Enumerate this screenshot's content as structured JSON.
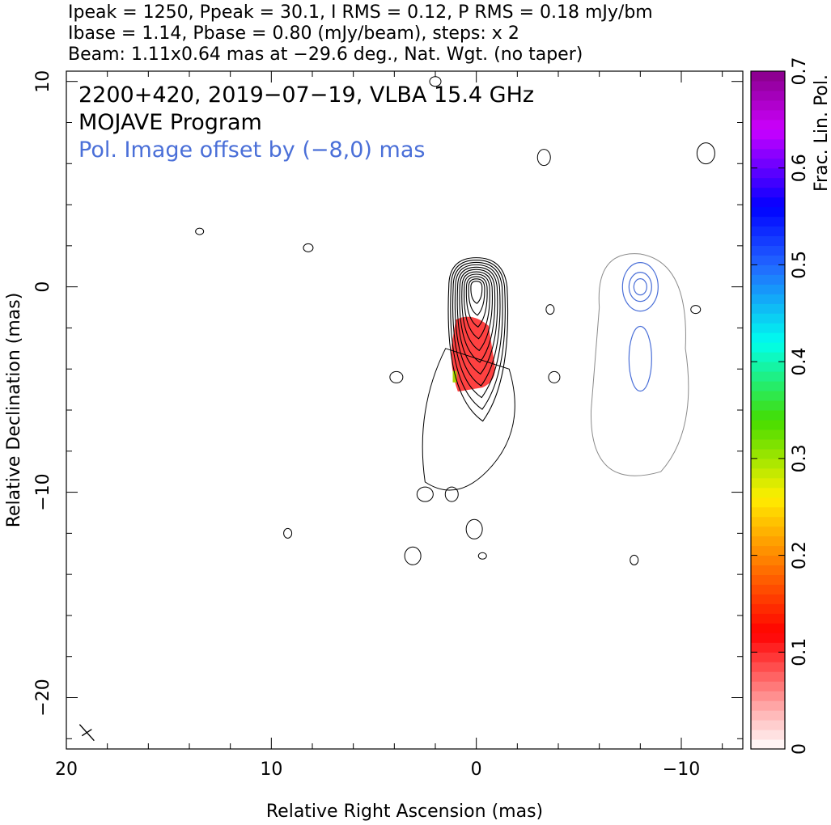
{
  "header": {
    "line1": "Ipeak = 1250, Ppeak = 30.1, I RMS = 0.12, P RMS = 0.18 mJy/bm",
    "line2": "Ibase = 1.14, Pbase = 0.80 (mJy/beam), steps: x 2",
    "line3": "Beam: 1.11x0.64 mas at −29.6 deg., Nat. Wgt. (no taper)"
  },
  "annotations": {
    "source": "2200+420, 2019−07−19, VLBA 15.4 GHz",
    "program": "MOJAVE Program",
    "offset_note": "Pol. Image offset by (−8,0) mas"
  },
  "colors": {
    "total_intensity_contour": "#000000",
    "pol_contour": "#8a8a8a",
    "pol_vector_blue": "#4a6fd8",
    "offset_note": "#4a6fd8",
    "frac_pol_fill": "#ff2020"
  },
  "chart_data": {
    "type": "contour",
    "xlabel": "Relative Right Ascension (mas)",
    "ylabel": "Relative Declination (mas)",
    "xlim": [
      20,
      -13
    ],
    "ylim": [
      -22.5,
      10.5
    ],
    "x_ticks": [
      20,
      10,
      0,
      -10
    ],
    "y_ticks": [
      10,
      0,
      -10,
      -20
    ],
    "x_tick_labels": [
      "20",
      "10",
      "0",
      "−10"
    ],
    "y_tick_labels": [
      "10",
      "0",
      "−10",
      "−20"
    ],
    "colorbar": {
      "label": "Frac. Lin. Pol.",
      "range": [
        0,
        0.7
      ],
      "ticks": [
        0,
        0.1,
        0.2,
        0.3,
        0.4,
        0.5,
        0.6,
        0.7
      ],
      "tick_labels": [
        "0",
        "0.1",
        "0.2",
        "0.3",
        "0.4",
        "0.5",
        "0.6",
        "0.7"
      ]
    },
    "core_total_intensity": {
      "center": [
        0,
        0
      ],
      "contour_levels_mJy_per_beam": [
        1.14,
        2.28,
        4.56,
        9.12,
        18.2,
        36.5,
        73.0,
        146,
        292,
        584,
        1168
      ]
    },
    "pol_image_offset": [
      -8,
      0
    ],
    "beam": {
      "major_mas": 1.11,
      "minor_mas": 0.64,
      "pa_deg": -29.6,
      "center": [
        19,
        -21.7
      ]
    },
    "frac_pol_region": {
      "ra_range": [
        -1,
        1.2
      ],
      "dec_range": [
        -5,
        -1.5
      ],
      "value_approx": 0.08
    }
  }
}
